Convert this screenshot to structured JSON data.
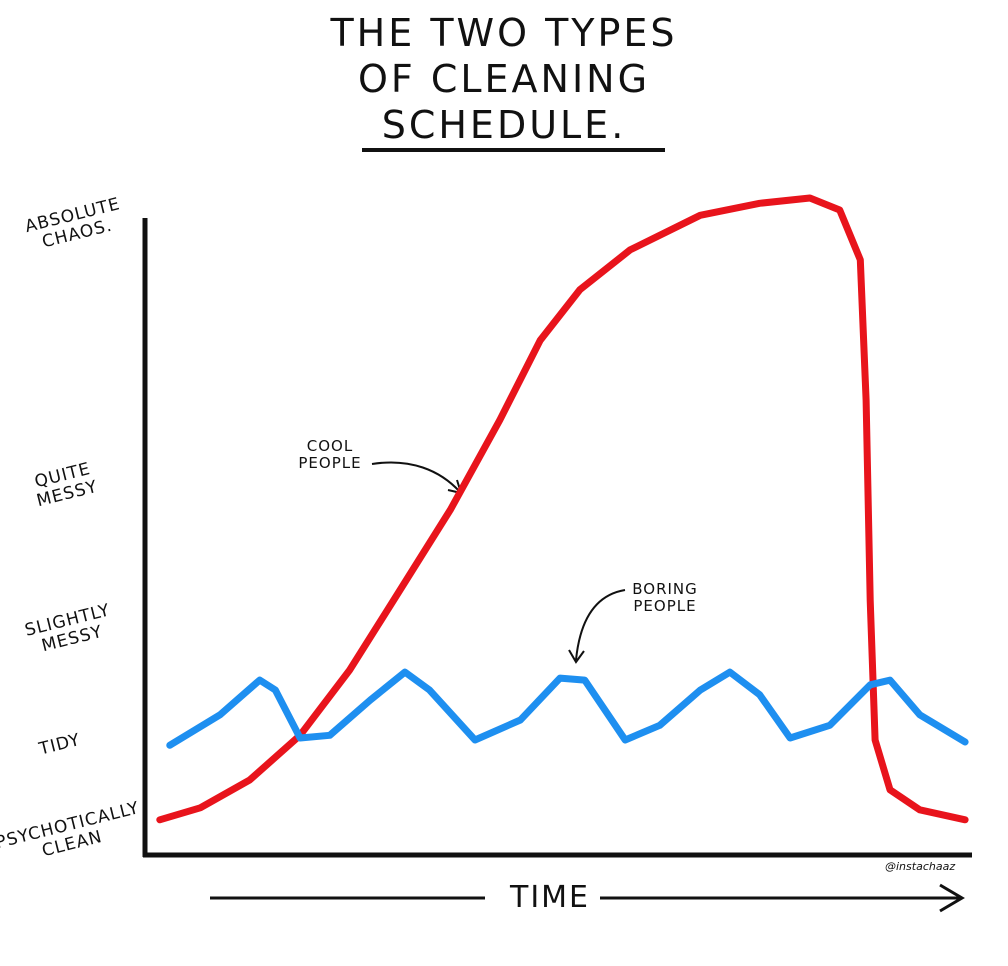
{
  "chart_data": {
    "type": "line",
    "title": "THE TWO TYPES\nOF CLEANING\nSCHEDULE.",
    "x_label": "TIME",
    "credit": "@instachaaz",
    "xlim": [
      0,
      100
    ],
    "ylim": [
      0,
      100
    ],
    "yticks": [
      {
        "value": 3.0,
        "label": "PSYCHOTICALLY\nCLEAN"
      },
      {
        "value": 16.5,
        "label": "TIDY"
      },
      {
        "value": 33.8,
        "label": "SLIGHTLY\nMESSY"
      },
      {
        "value": 55.6,
        "label": "QUITE\nMESSY"
      },
      {
        "value": 94.7,
        "label": "ABSOLUTE\nCHAOS."
      }
    ],
    "series": [
      {
        "name": "COOL\nPEOPLE",
        "color": "#e8141c",
        "x": [
          1.8,
          6.7,
          12.7,
          18.8,
          24.8,
          30.9,
          37.0,
          43.0,
          47.9,
          52.7,
          58.8,
          67.3,
          74.5,
          80.6,
          84.2,
          86.7,
          87.4,
          87.9,
          88.5,
          90.3,
          93.9,
          99.4
        ],
        "values": [
          5.3,
          7.1,
          11.3,
          18.0,
          27.8,
          39.8,
          51.9,
          65.4,
          77.4,
          85.0,
          91.0,
          96.2,
          98.0,
          98.8,
          97.0,
          89.5,
          68.4,
          38.3,
          17.3,
          9.8,
          6.8,
          5.3
        ]
      },
      {
        "name": "BORING\nPEOPLE",
        "color": "#1e8ff0",
        "x": [
          3.0,
          9.1,
          13.9,
          15.8,
          18.8,
          22.4,
          27.3,
          31.5,
          34.5,
          40.0,
          45.5,
          50.3,
          53.3,
          58.2,
          62.4,
          67.3,
          70.9,
          74.5,
          78.2,
          83.0,
          87.9,
          90.3,
          93.9,
          99.4
        ],
        "values": [
          16.5,
          21.1,
          26.3,
          24.8,
          17.6,
          18.0,
          23.3,
          27.5,
          24.8,
          17.3,
          20.3,
          26.6,
          26.3,
          17.3,
          19.5,
          24.8,
          27.5,
          24.1,
          17.6,
          19.5,
          25.6,
          26.3,
          21.1,
          17.0
        ]
      }
    ]
  }
}
